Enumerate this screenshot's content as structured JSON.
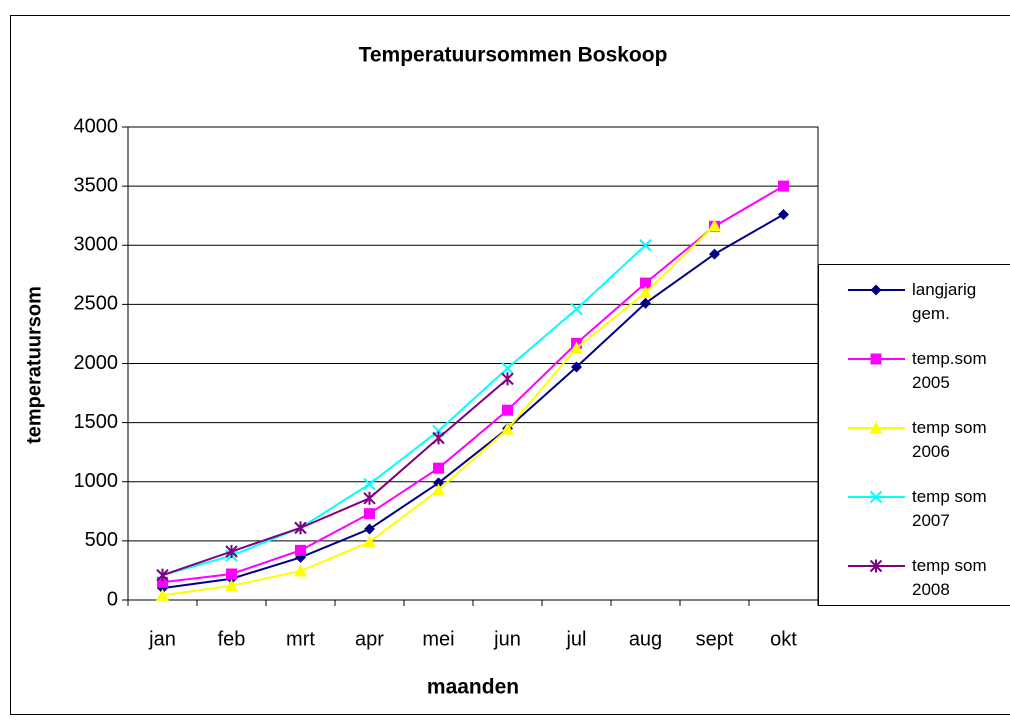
{
  "chart_data": {
    "type": "line",
    "title": "Temperatuursommen Boskoop",
    "x_label": "maanden",
    "y_label": "temperatuursom",
    "categories": [
      "jan",
      "feb",
      "mrt",
      "apr",
      "mei",
      "jun",
      "jul",
      "aug",
      "sept",
      "okt"
    ],
    "ylim": [
      0,
      4000
    ],
    "yticks": [
      0,
      500,
      1000,
      1500,
      2000,
      2500,
      3000,
      3500,
      4000
    ],
    "grid": true,
    "legend": "right",
    "series": [
      {
        "name": "langjarig gem.",
        "color": "#000080",
        "marker": "diamond",
        "values": [
          100,
          180,
          360,
          600,
          990,
          1450,
          1970,
          2510,
          2925,
          3260
        ]
      },
      {
        "name": "temp.som 2005",
        "color": "#ff00ff",
        "marker": "square",
        "values": [
          150,
          220,
          420,
          730,
          1115,
          1605,
          2170,
          2680,
          3160,
          3500
        ]
      },
      {
        "name": "temp som 2006",
        "color": "#ffff00",
        "marker": "triangle",
        "values": [
          40,
          120,
          245,
          490,
          930,
          1445,
          2130,
          2600,
          3165,
          null
        ]
      },
      {
        "name": "temp som 2007",
        "color": "#00ffff",
        "marker": "x",
        "values": [
          210,
          375,
          610,
          980,
          1430,
          1960,
          2460,
          3000,
          null,
          null
        ]
      },
      {
        "name": "temp som 2008",
        "color": "#800080",
        "marker": "star",
        "values": [
          210,
          410,
          610,
          860,
          1370,
          1870,
          null,
          null,
          null,
          null
        ]
      }
    ]
  }
}
